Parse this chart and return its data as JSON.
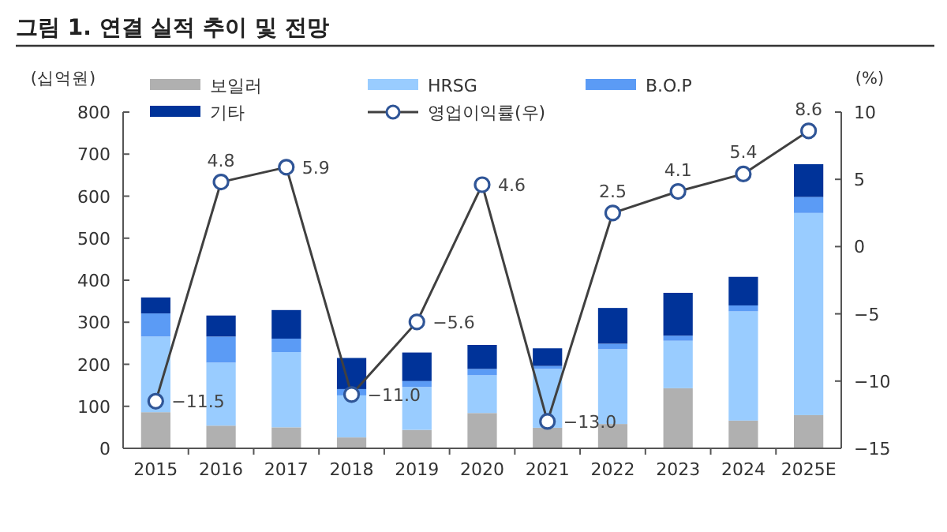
{
  "chart_data": {
    "type": "bar",
    "title": "그림 1. 연결 실적 추이 및 전망",
    "ylabel": "(십억원)",
    "y2label": "(%)",
    "stacked": true,
    "legend": "top",
    "grid": false,
    "marker": "circle",
    "categories": [
      "2015",
      "2016",
      "2017",
      "2018",
      "2019",
      "2020",
      "2021",
      "2022",
      "2023",
      "2024",
      "2025E"
    ],
    "series": [
      {
        "name": "보일러",
        "color": "#b0b0b0",
        "values": [
          86,
          54,
          50,
          26,
          44,
          84,
          49,
          58,
          143,
          66,
          79
        ]
      },
      {
        "name": "HRSG",
        "color": "#99ccff",
        "values": [
          180,
          150,
          179,
          100,
          102,
          90,
          140,
          178,
          113,
          260,
          481
        ]
      },
      {
        "name": "B.O.P",
        "color": "#5b9bf5",
        "values": [
          55,
          62,
          32,
          15,
          14,
          15,
          7,
          13,
          12,
          14,
          38
        ]
      },
      {
        "name": "기타",
        "color": "#003399",
        "values": [
          38,
          50,
          68,
          74,
          68,
          57,
          42,
          85,
          102,
          68,
          78
        ]
      },
      {
        "name": "영업이익률(우)",
        "type": "line",
        "axis": "y2",
        "color": "#404040",
        "values": [
          -11.5,
          4.8,
          5.9,
          -11.0,
          -5.6,
          4.6,
          -13.0,
          2.5,
          4.1,
          5.4,
          8.6
        ],
        "value_labels": [
          "−11.5",
          "4.8",
          "5.9",
          "−11.0",
          "−5.6",
          "4.6",
          "−13.0",
          "2.5",
          "4.1",
          "5.4",
          "8.6"
        ]
      }
    ],
    "ylim": [
      0,
      800
    ],
    "yticks": [
      0,
      100,
      200,
      300,
      400,
      500,
      600,
      700,
      800
    ],
    "y2lim": [
      -15,
      10
    ],
    "y2ticks": [
      {
        "value": -15,
        "label": "−15"
      },
      {
        "value": -10,
        "label": "−10"
      },
      {
        "value": -5,
        "label": "−5"
      },
      0,
      5,
      10
    ]
  }
}
